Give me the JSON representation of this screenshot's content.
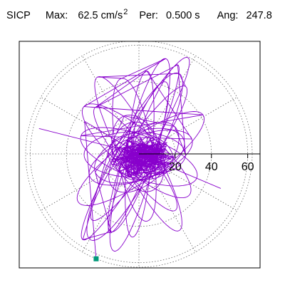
{
  "header": {
    "station": "SICP",
    "max_label": "Max:",
    "max_value": "62.5",
    "max_unit": "cm/s",
    "max_unit_exp": "2",
    "per_label": "Per:",
    "per_value": "0.500 s",
    "ang_label": "Ang:",
    "ang_value": "247.8"
  },
  "colors": {
    "trace": "#8800cc",
    "marker": "#00997a",
    "grid": "#666666",
    "axis": "#000000",
    "frame": "#000000"
  },
  "chart_data": {
    "type": "polar_orbit",
    "r_max": 62.5,
    "r_ticks": [
      20,
      40,
      60
    ],
    "tick_labels": [
      "20",
      "40",
      "60"
    ],
    "spoke_angles_deg": [
      0,
      30,
      60,
      90,
      120,
      150,
      180,
      210,
      240,
      270,
      300,
      330
    ],
    "grid": true,
    "marker_angle_deg": 247.8,
    "marker_radius": 62.5
  }
}
